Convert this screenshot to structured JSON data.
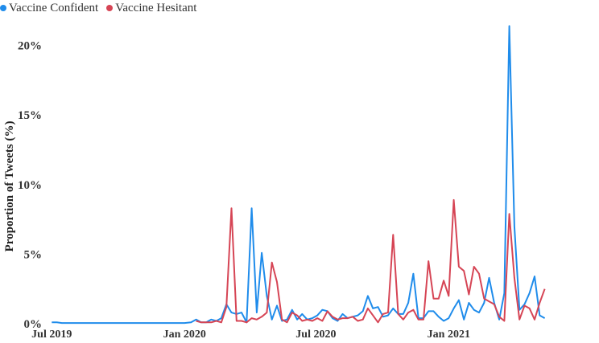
{
  "chart_data": {
    "type": "line",
    "ylabel": "Proportion of Tweets (%)",
    "xlabel": "",
    "ylim": [
      0,
      22
    ],
    "grid": false,
    "legend_position": "top-left",
    "y_ticks": [
      {
        "value": 0,
        "label": "0%"
      },
      {
        "value": 5,
        "label": "5%"
      },
      {
        "value": 10,
        "label": "10%"
      },
      {
        "value": 15,
        "label": "15%"
      },
      {
        "value": 20,
        "label": "20%"
      }
    ],
    "x_ticks": [
      {
        "date": "2019-07-01",
        "label": "Jul 2019"
      },
      {
        "date": "2020-01-01",
        "label": "Jan 2020"
      },
      {
        "date": "2020-07-01",
        "label": "Jul 2020"
      },
      {
        "date": "2021-01-01",
        "label": "Jan 2021"
      }
    ],
    "x_range": [
      "2019-06-24",
      "2021-07-26"
    ],
    "series": [
      {
        "name": "Vaccine Confident",
        "color": "#1f8ceb",
        "points": [
          [
            "2019-07-01",
            0.1
          ],
          [
            "2019-07-08",
            0.1
          ],
          [
            "2019-07-15",
            0.05
          ],
          [
            "2019-08-01",
            0.05
          ],
          [
            "2019-09-01",
            0.05
          ],
          [
            "2019-10-01",
            0.05
          ],
          [
            "2019-11-01",
            0.05
          ],
          [
            "2019-12-01",
            0.05
          ],
          [
            "2019-12-20",
            0.05
          ],
          [
            "2020-01-01",
            0.05
          ],
          [
            "2020-01-10",
            0.1
          ],
          [
            "2020-01-17",
            0.3
          ],
          [
            "2020-01-24",
            0.1
          ],
          [
            "2020-01-31",
            0.1
          ],
          [
            "2020-02-07",
            0.3
          ],
          [
            "2020-02-14",
            0.2
          ],
          [
            "2020-02-21",
            0.4
          ],
          [
            "2020-02-28",
            1.4
          ],
          [
            "2020-03-06",
            0.8
          ],
          [
            "2020-03-13",
            0.7
          ],
          [
            "2020-03-20",
            0.8
          ],
          [
            "2020-03-27",
            0.1
          ],
          [
            "2020-04-03",
            8.3
          ],
          [
            "2020-04-10",
            0.8
          ],
          [
            "2020-04-17",
            5.1
          ],
          [
            "2020-04-24",
            2.0
          ],
          [
            "2020-05-01",
            0.3
          ],
          [
            "2020-05-08",
            1.3
          ],
          [
            "2020-05-15",
            0.2
          ],
          [
            "2020-05-22",
            0.3
          ],
          [
            "2020-05-29",
            1.0
          ],
          [
            "2020-06-05",
            0.3
          ],
          [
            "2020-06-12",
            0.7
          ],
          [
            "2020-06-19",
            0.3
          ],
          [
            "2020-06-26",
            0.4
          ],
          [
            "2020-07-03",
            0.6
          ],
          [
            "2020-07-10",
            1.0
          ],
          [
            "2020-07-17",
            0.9
          ],
          [
            "2020-07-24",
            0.4
          ],
          [
            "2020-07-31",
            0.2
          ],
          [
            "2020-08-07",
            0.7
          ],
          [
            "2020-08-14",
            0.4
          ],
          [
            "2020-08-21",
            0.5
          ],
          [
            "2020-08-28",
            0.6
          ],
          [
            "2020-09-04",
            0.9
          ],
          [
            "2020-09-11",
            2.0
          ],
          [
            "2020-09-18",
            1.1
          ],
          [
            "2020-09-25",
            1.2
          ],
          [
            "2020-10-02",
            0.5
          ],
          [
            "2020-10-09",
            0.6
          ],
          [
            "2020-10-16",
            1.1
          ],
          [
            "2020-10-23",
            0.7
          ],
          [
            "2020-10-30",
            0.7
          ],
          [
            "2020-11-06",
            1.5
          ],
          [
            "2020-11-13",
            3.6
          ],
          [
            "2020-11-20",
            0.4
          ],
          [
            "2020-11-27",
            0.4
          ],
          [
            "2020-12-04",
            0.9
          ],
          [
            "2020-12-11",
            0.9
          ],
          [
            "2020-12-18",
            0.5
          ],
          [
            "2020-12-25",
            0.2
          ],
          [
            "2021-01-01",
            0.4
          ],
          [
            "2021-01-08",
            1.1
          ],
          [
            "2021-01-15",
            1.7
          ],
          [
            "2021-01-22",
            0.3
          ],
          [
            "2021-01-29",
            1.5
          ],
          [
            "2021-02-05",
            1.0
          ],
          [
            "2021-02-12",
            0.8
          ],
          [
            "2021-02-19",
            1.5
          ],
          [
            "2021-02-26",
            3.3
          ],
          [
            "2021-03-05",
            1.5
          ],
          [
            "2021-03-12",
            0.3
          ],
          [
            "2021-03-19",
            2.2
          ],
          [
            "2021-03-26",
            21.4
          ],
          [
            "2021-04-02",
            7.0
          ],
          [
            "2021-04-09",
            1.0
          ],
          [
            "2021-04-16",
            1.4
          ],
          [
            "2021-04-23",
            2.2
          ],
          [
            "2021-04-30",
            3.4
          ],
          [
            "2021-05-07",
            0.6
          ],
          [
            "2021-05-14",
            0.4
          ]
        ]
      },
      {
        "name": "Vaccine Hesitant",
        "color": "#d64555",
        "points": [
          [
            "2020-01-17",
            0.2
          ],
          [
            "2020-01-24",
            0.1
          ],
          [
            "2020-01-31",
            0.1
          ],
          [
            "2020-02-07",
            0.1
          ],
          [
            "2020-02-14",
            0.2
          ],
          [
            "2020-02-21",
            0.1
          ],
          [
            "2020-02-28",
            1.2
          ],
          [
            "2020-03-06",
            8.3
          ],
          [
            "2020-03-13",
            0.2
          ],
          [
            "2020-03-20",
            0.2
          ],
          [
            "2020-03-27",
            0.1
          ],
          [
            "2020-04-03",
            0.4
          ],
          [
            "2020-04-10",
            0.3
          ],
          [
            "2020-04-17",
            0.5
          ],
          [
            "2020-04-24",
            0.8
          ],
          [
            "2020-05-01",
            4.4
          ],
          [
            "2020-05-08",
            3.0
          ],
          [
            "2020-05-15",
            0.3
          ],
          [
            "2020-05-22",
            0.1
          ],
          [
            "2020-05-29",
            0.8
          ],
          [
            "2020-06-05",
            0.6
          ],
          [
            "2020-06-12",
            0.2
          ],
          [
            "2020-06-19",
            0.3
          ],
          [
            "2020-06-26",
            0.2
          ],
          [
            "2020-07-03",
            0.4
          ],
          [
            "2020-07-10",
            0.2
          ],
          [
            "2020-07-17",
            0.9
          ],
          [
            "2020-07-24",
            0.5
          ],
          [
            "2020-07-31",
            0.3
          ],
          [
            "2020-08-07",
            0.4
          ],
          [
            "2020-08-14",
            0.4
          ],
          [
            "2020-08-21",
            0.5
          ],
          [
            "2020-08-28",
            0.2
          ],
          [
            "2020-09-04",
            0.3
          ],
          [
            "2020-09-11",
            1.1
          ],
          [
            "2020-09-18",
            0.6
          ],
          [
            "2020-09-25",
            0.1
          ],
          [
            "2020-10-02",
            0.7
          ],
          [
            "2020-10-09",
            0.8
          ],
          [
            "2020-10-16",
            6.4
          ],
          [
            "2020-10-23",
            0.7
          ],
          [
            "2020-10-30",
            0.3
          ],
          [
            "2020-11-06",
            0.8
          ],
          [
            "2020-11-13",
            1.0
          ],
          [
            "2020-11-20",
            0.3
          ],
          [
            "2020-11-27",
            0.3
          ],
          [
            "2020-12-04",
            4.5
          ],
          [
            "2020-12-11",
            1.8
          ],
          [
            "2020-12-18",
            1.8
          ],
          [
            "2020-12-25",
            3.1
          ],
          [
            "2021-01-01",
            2.0
          ],
          [
            "2021-01-08",
            8.9
          ],
          [
            "2021-01-15",
            4.1
          ],
          [
            "2021-01-22",
            3.8
          ],
          [
            "2021-01-29",
            2.1
          ],
          [
            "2021-02-05",
            4.1
          ],
          [
            "2021-02-12",
            3.6
          ],
          [
            "2021-02-19",
            1.8
          ],
          [
            "2021-02-26",
            1.6
          ],
          [
            "2021-03-05",
            1.4
          ],
          [
            "2021-03-12",
            0.5
          ],
          [
            "2021-03-19",
            0.2
          ],
          [
            "2021-03-26",
            7.9
          ],
          [
            "2021-04-02",
            3.3
          ],
          [
            "2021-04-09",
            0.3
          ],
          [
            "2021-04-16",
            1.3
          ],
          [
            "2021-04-23",
            1.1
          ],
          [
            "2021-04-30",
            0.3
          ],
          [
            "2021-05-07",
            1.5
          ],
          [
            "2021-05-14",
            2.5
          ]
        ]
      }
    ]
  }
}
